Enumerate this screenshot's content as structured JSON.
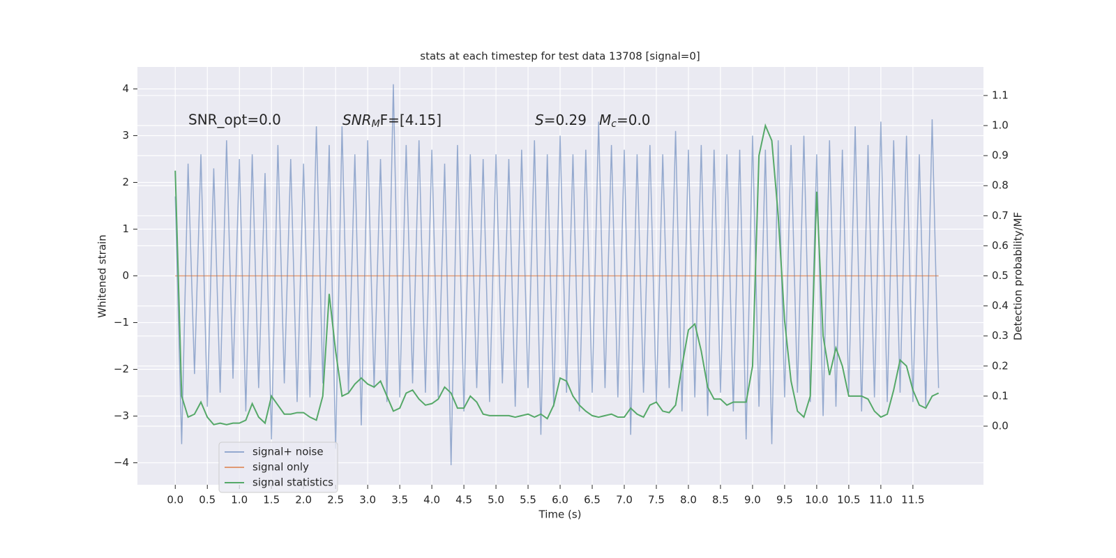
{
  "chart_data": {
    "type": "line",
    "title": "stats at each timestep for test data 13708 [signal=0]",
    "xlabel": "Time (s)",
    "ylabel": "Whitened strain",
    "y2label": "Detection probability/MF",
    "annotations": [
      {
        "text": "SNR_opt=0.0"
      },
      {
        "main": "SNR",
        "sub": "M",
        "rest": "F=[4.15]"
      },
      {
        "main": "S",
        "rest": "=0.29"
      },
      {
        "main": "M",
        "sub": "c",
        "rest": "=0.0"
      }
    ],
    "legend": "lower left",
    "grid": true,
    "xlim": [
      -0.59,
      12.6
    ],
    "ylim": [
      -4.47,
      4.47
    ],
    "y2lim": [
      -0.195,
      1.195
    ],
    "xticks": [
      {
        "value": 0,
        "label": "0.0"
      },
      0.5,
      {
        "value": 1,
        "label": "1.0"
      },
      1.5,
      {
        "value": 2,
        "label": "2.0"
      },
      2.5,
      {
        "value": 3,
        "label": "3.0"
      },
      3.5,
      {
        "value": 4,
        "label": "4.0"
      },
      4.5,
      {
        "value": 5,
        "label": "5.0"
      },
      5.5,
      {
        "value": 6,
        "label": "6.0"
      },
      6.5,
      {
        "value": 7,
        "label": "7.0"
      },
      7.5,
      {
        "value": 8,
        "label": "8.0"
      },
      8.5,
      {
        "value": 9,
        "label": "9.0"
      },
      9.5,
      {
        "value": 10,
        "label": "10.0"
      },
      10.5,
      {
        "value": 11,
        "label": "11.0"
      },
      11.5
    ],
    "yticks": [
      {
        "value": -4,
        "label": "−4"
      },
      {
        "value": -3,
        "label": "−3"
      },
      {
        "value": -2,
        "label": "−2"
      },
      {
        "value": -1,
        "label": "−1"
      },
      0,
      1,
      2,
      3,
      4
    ],
    "y2ticks": [
      {
        "value": 0,
        "label": "0.0"
      },
      0.1,
      0.2,
      0.3,
      0.4,
      0.5,
      0.6,
      0.7,
      0.8,
      0.9,
      {
        "value": 1,
        "label": "1.0"
      },
      1.1
    ],
    "x": [
      0,
      0.1,
      0.2,
      0.3,
      0.4,
      0.5,
      0.6,
      0.7,
      0.8,
      0.9,
      1,
      1.1,
      1.2,
      1.3,
      1.4,
      1.5,
      1.6,
      1.7,
      1.8,
      1.9,
      2,
      2.1,
      2.2,
      2.3,
      2.4,
      2.5,
      2.6,
      2.7,
      2.8,
      2.9,
      3,
      3.1,
      3.2,
      3.3,
      3.4,
      3.5,
      3.6,
      3.7,
      3.8,
      3.9,
      4,
      4.1,
      4.2,
      4.3,
      4.4,
      4.5,
      4.6,
      4.7,
      4.8,
      4.9,
      5,
      5.1,
      5.2,
      5.3,
      5.4,
      5.5,
      5.6,
      5.7,
      5.8,
      5.9,
      6,
      6.1,
      6.2,
      6.3,
      6.4,
      6.5,
      6.6,
      6.7,
      6.8,
      6.9,
      7,
      7.1,
      7.2,
      7.3,
      7.4,
      7.5,
      7.6,
      7.7,
      7.8,
      7.9,
      8,
      8.1,
      8.2,
      8.3,
      8.4,
      8.5,
      8.6,
      8.7,
      8.8,
      8.9,
      9,
      9.1,
      9.2,
      9.3,
      9.4,
      9.5,
      9.6,
      9.7,
      9.8,
      9.9,
      10,
      10.1,
      10.2,
      10.3,
      10.4,
      10.5,
      10.6,
      10.7,
      10.8,
      10.9,
      11,
      11.1,
      11.2,
      11.3,
      11.4,
      11.5,
      11.6,
      11.7,
      11.8,
      11.9
    ],
    "series": [
      {
        "name": "signal+ noise",
        "color": "#4c72b0",
        "alpha": 0.55,
        "values": [
          1.7,
          -3.6,
          2.4,
          -2.1,
          2.6,
          -2.8,
          2.3,
          -2.5,
          2.9,
          -2.2,
          2.5,
          -2.9,
          2.6,
          -2.4,
          2.2,
          -3.5,
          2.8,
          -2.3,
          2.5,
          -2.7,
          2.4,
          -2.6,
          3.2,
          -2.3,
          2.8,
          -3.7,
          3.2,
          -2.5,
          2.6,
          -3.2,
          2.9,
          -2.4,
          2.5,
          -2.7,
          4.1,
          -2.6,
          2.8,
          -2.3,
          2.9,
          -2.5,
          2.7,
          -2.6,
          2.4,
          -4.05,
          2.8,
          -2.9,
          2.6,
          -2.4,
          2.5,
          -2.7,
          2.6,
          -2.3,
          2.5,
          -2.8,
          2.7,
          -2.4,
          2.9,
          -3.4,
          2.6,
          -2.8,
          3.0,
          -2.5,
          2.6,
          -2.9,
          2.7,
          -2.5,
          3.3,
          -2.4,
          2.8,
          -2.6,
          2.7,
          -3.4,
          2.6,
          -2.5,
          2.8,
          -2.7,
          2.6,
          -2.4,
          3.1,
          -2.9,
          2.7,
          -2.6,
          2.8,
          -3.0,
          2.7,
          -2.5,
          2.6,
          -2.9,
          2.7,
          -3.5,
          3.0,
          -2.8,
          2.7,
          -3.6,
          2.9,
          -2.6,
          2.8,
          -2.5,
          3.0,
          -2.7,
          2.6,
          -3.0,
          2.9,
          -2.8,
          2.7,
          -2.5,
          3.2,
          -2.9,
          2.8,
          -2.6,
          3.3,
          -2.7,
          2.9,
          -2.5,
          3.0,
          -2.7,
          2.6,
          -2.8,
          3.35,
          -2.4
        ]
      },
      {
        "name": "signal only",
        "color": "#dd8452",
        "alpha": 0.8,
        "values": [
          0,
          0,
          0,
          0,
          0,
          0,
          0,
          0,
          0,
          0,
          0,
          0,
          0,
          0,
          0,
          0,
          0,
          0,
          0,
          0,
          0,
          0,
          0,
          0,
          0,
          0,
          0,
          0,
          0,
          0,
          0,
          0,
          0,
          0,
          0,
          0,
          0,
          0,
          0,
          0,
          0,
          0,
          0,
          0,
          0,
          0,
          0,
          0,
          0,
          0,
          0,
          0,
          0,
          0,
          0,
          0,
          0,
          0,
          0,
          0,
          0,
          0,
          0,
          0,
          0,
          0,
          0,
          0,
          0,
          0,
          0,
          0,
          0,
          0,
          0,
          0,
          0,
          0,
          0,
          0,
          0,
          0,
          0,
          0,
          0,
          0,
          0,
          0,
          0,
          0,
          0,
          0,
          0,
          0,
          0,
          0,
          0,
          0,
          0,
          0,
          0,
          0,
          0,
          0,
          0,
          0,
          0,
          0,
          0,
          0,
          0,
          0,
          0,
          0,
          0,
          0,
          0,
          0,
          0,
          0
        ]
      },
      {
        "name": "signal statistics",
        "color": "#55a868",
        "alpha": 1,
        "axis": "y2",
        "values": [
          0.85,
          0.1,
          0.03,
          0.04,
          0.08,
          0.03,
          0.005,
          0.01,
          0.005,
          0.01,
          0.01,
          0.02,
          0.075,
          0.03,
          0.01,
          0.1,
          0.07,
          0.04,
          0.04,
          0.045,
          0.045,
          0.03,
          0.02,
          0.1,
          0.44,
          0.25,
          0.1,
          0.11,
          0.14,
          0.16,
          0.14,
          0.13,
          0.15,
          0.1,
          0.05,
          0.06,
          0.11,
          0.12,
          0.09,
          0.07,
          0.075,
          0.09,
          0.13,
          0.11,
          0.06,
          0.06,
          0.1,
          0.08,
          0.04,
          0.035,
          0.035,
          0.035,
          0.035,
          0.03,
          0.035,
          0.04,
          0.03,
          0.04,
          0.025,
          0.07,
          0.16,
          0.15,
          0.1,
          0.07,
          0.05,
          0.035,
          0.03,
          0.035,
          0.04,
          0.03,
          0.03,
          0.06,
          0.04,
          0.03,
          0.07,
          0.08,
          0.05,
          0.045,
          0.07,
          0.2,
          0.32,
          0.34,
          0.25,
          0.13,
          0.09,
          0.09,
          0.07,
          0.08,
          0.08,
          0.08,
          0.2,
          0.9,
          1.0,
          0.95,
          0.7,
          0.35,
          0.15,
          0.05,
          0.03,
          0.1,
          0.78,
          0.3,
          0.17,
          0.26,
          0.2,
          0.1,
          0.1,
          0.1,
          0.09,
          0.05,
          0.03,
          0.04,
          0.12,
          0.22,
          0.2,
          0.12,
          0.07,
          0.06,
          0.1,
          0.11
        ]
      }
    ]
  }
}
